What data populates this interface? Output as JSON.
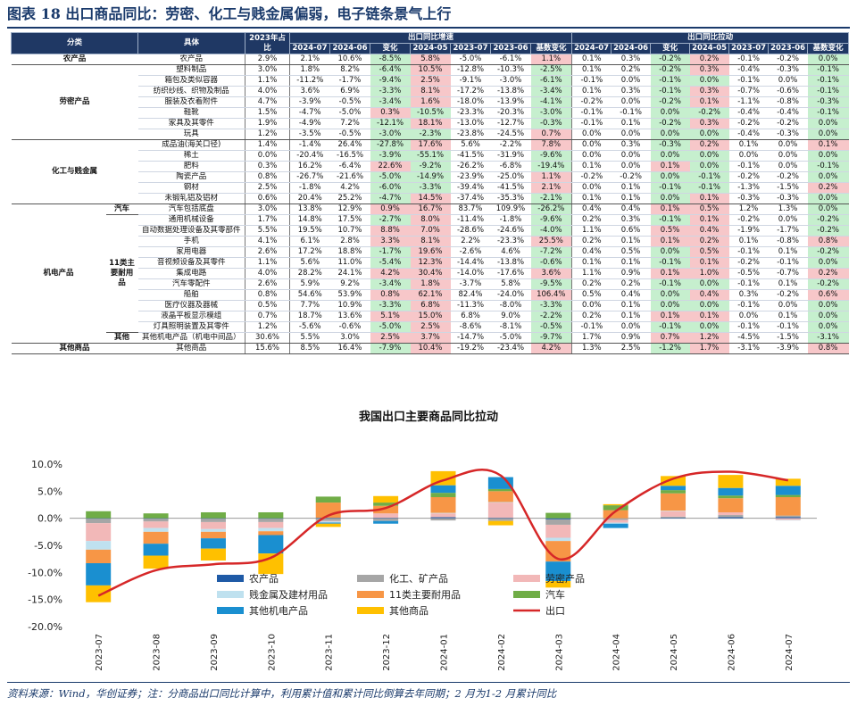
{
  "figure": {
    "title": "图表 18 出口商品同比：劳密、化工与贱金属偏弱，电子链条景气上行",
    "source": "资料来源：Wind，华创证券；注：分商品出口同比计算中，利用累计值和累计同比倒算去年同期；2 月为1-2 月累计同比"
  },
  "table": {
    "headers": {
      "category": "分类",
      "detail": "具体",
      "share": "2023年占比",
      "growth_group": "出口同比增速",
      "pull_group": "出口同比拉动",
      "growth_cols": [
        "2024-07",
        "2024-06",
        "变化",
        "2024-05",
        "2023-07",
        "2023-06",
        "基数变化"
      ],
      "pull_cols": [
        "2024-07",
        "2024-06",
        "变化",
        "2024-05",
        "2023-07",
        "2023-06",
        "基数变化"
      ]
    },
    "rows": [
      {
        "cat": "农产品",
        "sub": "",
        "name": "农产品",
        "share": "2.9%",
        "g": [
          "2.1%",
          "10.6%",
          "-8.5%",
          "5.8%",
          "-5.0%",
          "-6.1%",
          "1.1%"
        ],
        "p": [
          "0.1%",
          "0.3%",
          "-0.2%",
          "0.2%",
          "-0.1%",
          "-0.2%",
          "0.0%"
        ]
      },
      {
        "cat": "劳密产品",
        "sub": "",
        "name": "塑料制品",
        "share": "3.0%",
        "g": [
          "1.8%",
          "8.2%",
          "-6.4%",
          "10.5%",
          "-12.8%",
          "-10.3%",
          "-2.5%"
        ],
        "p": [
          "0.1%",
          "0.2%",
          "-0.2%",
          "0.3%",
          "-0.4%",
          "-0.3%",
          "-0.1%"
        ]
      },
      {
        "cat": "劳密产品",
        "sub": "",
        "name": "箱包及类似容器",
        "share": "1.1%",
        "g": [
          "-11.2%",
          "-1.7%",
          "-9.4%",
          "2.5%",
          "-9.1%",
          "-3.0%",
          "-6.1%"
        ],
        "p": [
          "-0.1%",
          "0.0%",
          "-0.1%",
          "0.0%",
          "-0.1%",
          "0.0%",
          "-0.1%"
        ]
      },
      {
        "cat": "劳密产品",
        "sub": "",
        "name": "纺织纱线、织物及制品",
        "share": "4.0%",
        "g": [
          "3.6%",
          "6.9%",
          "-3.3%",
          "8.1%",
          "-17.2%",
          "-13.8%",
          "-3.4%"
        ],
        "p": [
          "0.1%",
          "0.3%",
          "-0.1%",
          "0.3%",
          "-0.7%",
          "-0.6%",
          "-0.1%"
        ]
      },
      {
        "cat": "劳密产品",
        "sub": "",
        "name": "服装及衣着附件",
        "share": "4.7%",
        "g": [
          "-3.9%",
          "-0.5%",
          "-3.4%",
          "1.6%",
          "-18.0%",
          "-13.9%",
          "-4.1%"
        ],
        "p": [
          "-0.2%",
          "0.0%",
          "-0.2%",
          "0.1%",
          "-1.1%",
          "-0.8%",
          "-0.3%"
        ]
      },
      {
        "cat": "劳密产品",
        "sub": "",
        "name": "鞋靴",
        "share": "1.5%",
        "g": [
          "-4.7%",
          "-5.0%",
          "0.3%",
          "-10.5%",
          "-23.3%",
          "-20.3%",
          "-3.0%"
        ],
        "p": [
          "-0.1%",
          "-0.1%",
          "0.0%",
          "-0.2%",
          "-0.4%",
          "-0.4%",
          "-0.1%"
        ]
      },
      {
        "cat": "劳密产品",
        "sub": "",
        "name": "家具及其零件",
        "share": "1.9%",
        "g": [
          "-4.9%",
          "7.2%",
          "-12.1%",
          "18.1%",
          "-13.0%",
          "-12.7%",
          "-0.3%"
        ],
        "p": [
          "-0.1%",
          "0.1%",
          "-0.2%",
          "0.3%",
          "-0.2%",
          "-0.2%",
          "0.0%"
        ]
      },
      {
        "cat": "劳密产品",
        "sub": "",
        "name": "玩具",
        "share": "1.2%",
        "g": [
          "-3.5%",
          "-0.5%",
          "-3.0%",
          "-2.3%",
          "-23.8%",
          "-24.5%",
          "0.7%"
        ],
        "p": [
          "0.0%",
          "0.0%",
          "0.0%",
          "0.0%",
          "-0.4%",
          "-0.3%",
          "0.0%"
        ]
      },
      {
        "cat": "化工与贱金属",
        "sub": "",
        "name": "成品油(海关口径)",
        "share": "1.4%",
        "g": [
          "-1.4%",
          "26.4%",
          "-27.8%",
          "17.6%",
          "5.6%",
          "-2.2%",
          "7.8%"
        ],
        "p": [
          "0.0%",
          "0.3%",
          "-0.3%",
          "0.2%",
          "0.1%",
          "0.0%",
          "0.1%"
        ]
      },
      {
        "cat": "化工与贱金属",
        "sub": "",
        "name": "稀土",
        "share": "0.0%",
        "g": [
          "-20.4%",
          "-16.5%",
          "-3.9%",
          "-55.1%",
          "-41.5%",
          "-31.9%",
          "-9.6%"
        ],
        "p": [
          "0.0%",
          "0.0%",
          "0.0%",
          "0.0%",
          "0.0%",
          "0.0%",
          "0.0%"
        ]
      },
      {
        "cat": "化工与贱金属",
        "sub": "",
        "name": "肥料",
        "share": "0.3%",
        "g": [
          "16.2%",
          "-6.4%",
          "22.6%",
          "-9.2%",
          "-26.2%",
          "-6.8%",
          "-19.4%"
        ],
        "p": [
          "0.1%",
          "0.0%",
          "0.1%",
          "0.0%",
          "-0.1%",
          "0.0%",
          "-0.1%"
        ]
      },
      {
        "cat": "化工与贱金属",
        "sub": "",
        "name": "陶瓷产品",
        "share": "0.8%",
        "g": [
          "-26.7%",
          "-21.6%",
          "-5.0%",
          "-14.9%",
          "-23.9%",
          "-25.0%",
          "1.1%"
        ],
        "p": [
          "-0.2%",
          "-0.2%",
          "0.0%",
          "-0.1%",
          "-0.2%",
          "-0.2%",
          "0.0%"
        ]
      },
      {
        "cat": "化工与贱金属",
        "sub": "",
        "name": "钢材",
        "share": "2.5%",
        "g": [
          "-1.8%",
          "4.2%",
          "-6.0%",
          "-3.3%",
          "-39.4%",
          "-41.5%",
          "2.1%"
        ],
        "p": [
          "0.0%",
          "0.1%",
          "-0.1%",
          "-0.1%",
          "-1.3%",
          "-1.5%",
          "0.2%"
        ]
      },
      {
        "cat": "化工与贱金属",
        "sub": "",
        "name": "未锻轧铝及铝材",
        "share": "0.6%",
        "g": [
          "20.4%",
          "25.2%",
          "-4.7%",
          "14.5%",
          "-37.4%",
          "-35.3%",
          "-2.1%"
        ],
        "p": [
          "0.1%",
          "0.1%",
          "0.0%",
          "0.1%",
          "-0.3%",
          "-0.3%",
          "0.0%"
        ]
      },
      {
        "cat": "机电产品",
        "sub": "汽车",
        "name": "汽车包括底盘",
        "share": "3.0%",
        "g": [
          "13.8%",
          "12.9%",
          "0.9%",
          "16.7%",
          "83.7%",
          "109.9%",
          "-26.2%"
        ],
        "p": [
          "0.4%",
          "0.4%",
          "0.1%",
          "0.5%",
          "1.2%",
          "1.3%",
          "0.0%"
        ]
      },
      {
        "cat": "机电产品",
        "sub": "11类主要耐用品",
        "name": "通用机械设备",
        "share": "1.7%",
        "g": [
          "14.8%",
          "17.5%",
          "-2.7%",
          "8.0%",
          "-11.4%",
          "-1.8%",
          "-9.6%"
        ],
        "p": [
          "0.2%",
          "0.3%",
          "-0.1%",
          "0.1%",
          "-0.2%",
          "0.0%",
          "-0.2%"
        ]
      },
      {
        "cat": "机电产品",
        "sub": "11类主要耐用品",
        "name": "自动数据处理设备及其零部件",
        "share": "5.5%",
        "g": [
          "19.5%",
          "10.7%",
          "8.8%",
          "7.0%",
          "-28.6%",
          "-24.6%",
          "-4.0%"
        ],
        "p": [
          "1.1%",
          "0.6%",
          "0.5%",
          "0.4%",
          "-1.9%",
          "-1.7%",
          "-0.2%"
        ]
      },
      {
        "cat": "机电产品",
        "sub": "11类主要耐用品",
        "name": "手机",
        "share": "4.1%",
        "g": [
          "6.1%",
          "2.8%",
          "3.3%",
          "8.1%",
          "2.2%",
          "-23.3%",
          "25.5%"
        ],
        "p": [
          "0.2%",
          "0.1%",
          "0.1%",
          "0.2%",
          "0.1%",
          "-0.8%",
          "0.8%"
        ]
      },
      {
        "cat": "机电产品",
        "sub": "11类主要耐用品",
        "name": "家用电器",
        "share": "2.6%",
        "g": [
          "17.2%",
          "18.8%",
          "-1.7%",
          "19.6%",
          "-2.6%",
          "4.6%",
          "-7.2%"
        ],
        "p": [
          "0.4%",
          "0.5%",
          "0.0%",
          "0.5%",
          "-0.1%",
          "0.1%",
          "-0.2%"
        ]
      },
      {
        "cat": "机电产品",
        "sub": "11类主要耐用品",
        "name": "音视频设备及其零件",
        "share": "1.1%",
        "g": [
          "5.6%",
          "11.0%",
          "-5.4%",
          "12.3%",
          "-14.4%",
          "-13.8%",
          "-0.6%"
        ],
        "p": [
          "0.1%",
          "0.1%",
          "-0.1%",
          "0.1%",
          "-0.2%",
          "-0.1%",
          "0.0%"
        ]
      },
      {
        "cat": "机电产品",
        "sub": "11类主要耐用品",
        "name": "集成电路",
        "share": "4.0%",
        "g": [
          "28.2%",
          "24.1%",
          "4.2%",
          "30.4%",
          "-14.0%",
          "-17.6%",
          "3.6%"
        ],
        "p": [
          "1.1%",
          "0.9%",
          "0.1%",
          "1.0%",
          "-0.5%",
          "-0.7%",
          "0.2%"
        ]
      },
      {
        "cat": "机电产品",
        "sub": "11类主要耐用品",
        "name": "汽车零配件",
        "share": "2.6%",
        "g": [
          "5.9%",
          "9.2%",
          "-3.4%",
          "1.8%",
          "-3.7%",
          "5.8%",
          "-9.5%"
        ],
        "p": [
          "0.2%",
          "0.2%",
          "-0.1%",
          "0.0%",
          "-0.1%",
          "0.1%",
          "-0.2%"
        ]
      },
      {
        "cat": "机电产品",
        "sub": "11类主要耐用品",
        "name": "船舶",
        "share": "0.8%",
        "g": [
          "54.6%",
          "53.9%",
          "0.8%",
          "62.1%",
          "82.4%",
          "-24.0%",
          "106.4%"
        ],
        "p": [
          "0.5%",
          "0.4%",
          "0.0%",
          "0.4%",
          "0.3%",
          "-0.2%",
          "0.6%"
        ]
      },
      {
        "cat": "机电产品",
        "sub": "11类主要耐用品",
        "name": "医疗仪器及器械",
        "share": "0.5%",
        "g": [
          "7.7%",
          "10.9%",
          "-3.3%",
          "6.8%",
          "-11.3%",
          "-8.0%",
          "-3.3%"
        ],
        "p": [
          "0.0%",
          "0.1%",
          "0.0%",
          "0.0%",
          "-0.1%",
          "0.0%",
          "0.0%"
        ]
      },
      {
        "cat": "机电产品",
        "sub": "11类主要耐用品",
        "name": "液晶平板显示模组",
        "share": "0.7%",
        "g": [
          "18.7%",
          "13.6%",
          "5.1%",
          "15.0%",
          "6.8%",
          "9.0%",
          "-2.2%"
        ],
        "p": [
          "0.2%",
          "0.1%",
          "0.1%",
          "0.1%",
          "0.0%",
          "0.1%",
          "0.0%"
        ]
      },
      {
        "cat": "机电产品",
        "sub": "11类主要耐用品",
        "name": "灯具照明装置及其零件",
        "share": "1.2%",
        "g": [
          "-5.6%",
          "-0.6%",
          "-5.0%",
          "2.5%",
          "-8.6%",
          "-8.1%",
          "-0.5%"
        ],
        "p": [
          "-0.1%",
          "0.0%",
          "-0.1%",
          "0.0%",
          "-0.1%",
          "-0.1%",
          "0.0%"
        ]
      },
      {
        "cat": "机电产品",
        "sub": "其他",
        "name": "其他机电产品（机电中间品）",
        "share": "30.6%",
        "g": [
          "5.5%",
          "3.0%",
          "2.5%",
          "3.7%",
          "-14.7%",
          "-5.0%",
          "-9.7%"
        ],
        "p": [
          "1.7%",
          "0.9%",
          "0.7%",
          "1.2%",
          "-4.5%",
          "-1.5%",
          "-3.1%"
        ]
      },
      {
        "cat": "其他商品",
        "sub": "",
        "name": "其他商品",
        "share": "15.6%",
        "g": [
          "8.5%",
          "16.4%",
          "-7.9%",
          "10.4%",
          "-19.2%",
          "-23.4%",
          "4.2%"
        ],
        "p": [
          "1.3%",
          "2.5%",
          "-1.2%",
          "1.7%",
          "-3.1%",
          "-3.9%",
          "0.8%"
        ]
      }
    ]
  },
  "chart_data": {
    "type": "bar",
    "title": "我国出口主要商品同比拉动",
    "subtype": "stacked bar with line overlay",
    "categories": [
      "2023-07",
      "2023-08",
      "2023-09",
      "2023-10",
      "2023-11",
      "2023-12",
      "2024-01",
      "2024-02",
      "2024-03",
      "2024-04",
      "2024-05",
      "2024-06",
      "2024-07"
    ],
    "ylim": [
      -20,
      10
    ],
    "yticks": [
      "-20.0%",
      "-15.0%",
      "-10.0%",
      "-5.0%",
      "0.0%",
      "5.0%",
      "10.0%"
    ],
    "grid": false,
    "legend_position": "bottom-inside",
    "series": [
      {
        "name": "农产品",
        "color": "#1f5aa6",
        "values": [
          -0.1,
          -0.1,
          -0.1,
          -0.1,
          0.1,
          0.1,
          0.2,
          0.1,
          -0.2,
          0.0,
          0.1,
          0.2,
          0.2
        ]
      },
      {
        "name": "化工、矿产品",
        "color": "#a6a6a6",
        "values": [
          -0.8,
          -0.5,
          -0.6,
          -0.6,
          -0.5,
          -0.5,
          -0.4,
          -0.5,
          -1.0,
          -0.3,
          0.2,
          0.4,
          0.3
        ]
      },
      {
        "name": "劳密产品",
        "color": "#f2b8b8",
        "values": [
          -3.3,
          -1.2,
          -1.3,
          -1.1,
          -0.1,
          0.8,
          0.7,
          2.8,
          -2.4,
          -0.5,
          1.0,
          0.5,
          -0.3
        ]
      },
      {
        "name": "贱金属及建材用品",
        "color": "#bfe1ef",
        "values": [
          -1.6,
          -0.7,
          -0.5,
          -0.6,
          -0.2,
          0.0,
          0.1,
          0.1,
          -0.6,
          -0.2,
          0.1,
          0.0,
          -0.1
        ]
      },
      {
        "name": "11类主要耐用品",
        "color": "#f79646",
        "values": [
          -2.5,
          -2.2,
          -1.2,
          -0.7,
          2.8,
          1.4,
          2.9,
          2.0,
          -3.8,
          1.5,
          3.2,
          2.6,
          3.4
        ]
      },
      {
        "name": "汽车",
        "color": "#70ad47",
        "values": [
          1.3,
          0.9,
          1.1,
          1.1,
          1.1,
          0.6,
          0.8,
          0.4,
          1.0,
          0.9,
          0.6,
          0.5,
          0.4
        ]
      },
      {
        "name": "其他机电产品",
        "color": "#1a8fd0",
        "values": [
          -4.1,
          -2.2,
          -1.9,
          -3.4,
          -0.2,
          -0.5,
          1.4,
          2.2,
          -3.6,
          -0.8,
          0.8,
          1.4,
          1.7
        ]
      },
      {
        "name": "其他商品",
        "color": "#ffc000",
        "values": [
          -3.1,
          -2.4,
          -2.2,
          -3.8,
          -0.6,
          1.2,
          2.6,
          -0.8,
          -1.2,
          0.2,
          1.8,
          2.4,
          1.3
        ]
      }
    ],
    "line": {
      "name": "出口",
      "color": "#d62728",
      "values": [
        -14.3,
        -9.6,
        -8.5,
        -7.3,
        0.5,
        1.9,
        7.0,
        7.9,
        -7.5,
        1.3,
        7.3,
        8.6,
        7.0
      ]
    }
  }
}
